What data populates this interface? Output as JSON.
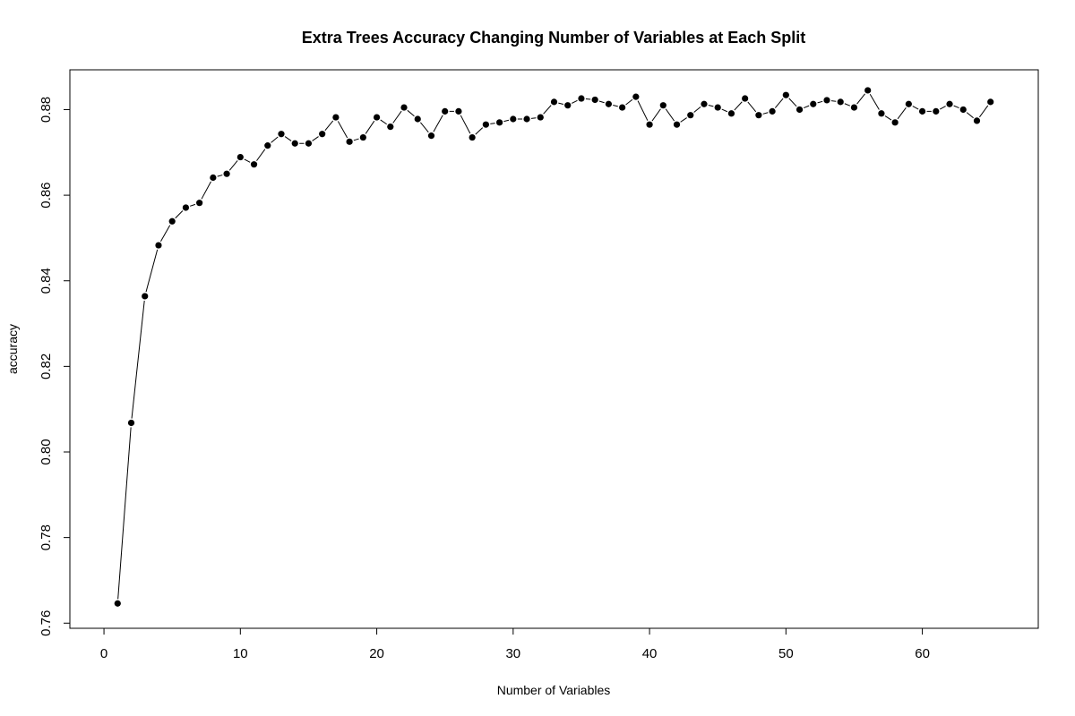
{
  "chart_data": {
    "type": "line",
    "title": "Extra Trees Accuracy Changing Number of Variables at Each Split",
    "xlabel": "Number of Variables",
    "ylabel": "accuracy",
    "xlim": [
      -2.5,
      68.5
    ],
    "ylim": [
      0.7588,
      0.8893
    ],
    "x_ticks": [
      0,
      10,
      20,
      30,
      40,
      50,
      60
    ],
    "y_ticks": [
      0.76,
      0.78,
      0.8,
      0.82,
      0.84,
      0.86,
      0.88
    ],
    "y_tick_labels": [
      "0.76",
      "0.78",
      "0.80",
      "0.82",
      "0.84",
      "0.86",
      "0.88"
    ],
    "grid": false,
    "series": [
      {
        "marker": "filled-circle",
        "line_style": "solid",
        "x": [
          1,
          2,
          3,
          4,
          5,
          6,
          7,
          8,
          9,
          10,
          11,
          12,
          13,
          14,
          15,
          16,
          17,
          18,
          19,
          20,
          21,
          22,
          23,
          24,
          25,
          26,
          27,
          28,
          29,
          30,
          31,
          32,
          33,
          34,
          35,
          36,
          37,
          38,
          39,
          40,
          41,
          42,
          43,
          44,
          45,
          46,
          47,
          48,
          49,
          50,
          51,
          52,
          53,
          54,
          55,
          56,
          57,
          58,
          59,
          60,
          61,
          62,
          63,
          64,
          65
        ],
        "y": [
          0.7646,
          0.8068,
          0.8364,
          0.8483,
          0.8539,
          0.8571,
          0.8582,
          0.8641,
          0.865,
          0.8689,
          0.8672,
          0.8716,
          0.8743,
          0.8721,
          0.8721,
          0.8743,
          0.8782,
          0.8725,
          0.8735,
          0.8782,
          0.876,
          0.8805,
          0.8778,
          0.8739,
          0.8796,
          0.8796,
          0.8735,
          0.8765,
          0.877,
          0.8778,
          0.8778,
          0.8782,
          0.8818,
          0.881,
          0.8826,
          0.8823,
          0.8813,
          0.8805,
          0.883,
          0.8765,
          0.881,
          0.8765,
          0.8787,
          0.8813,
          0.8805,
          0.8791,
          0.8826,
          0.8787,
          0.8796,
          0.8834,
          0.88,
          0.8813,
          0.8822,
          0.8818,
          0.8805,
          0.8845,
          0.8791,
          0.877,
          0.8813,
          0.8796,
          0.8796,
          0.8813,
          0.88,
          0.8774,
          0.8818
        ]
      }
    ]
  }
}
